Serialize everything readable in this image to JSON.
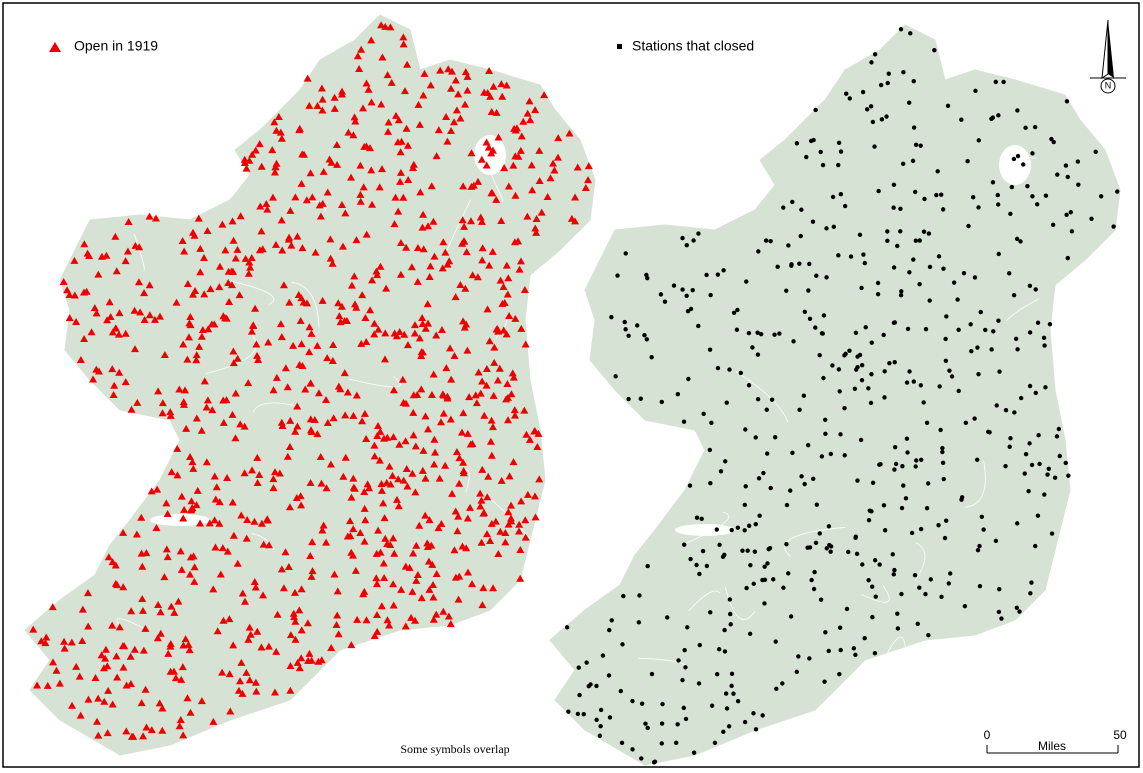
{
  "legend": {
    "open": "Open in 1919",
    "closed": "Stations that closed"
  },
  "note": "Some symbols overlap",
  "north_arrow": "N",
  "scale_bar": {
    "start": "0",
    "unit": "Miles",
    "end": "50"
  }
}
